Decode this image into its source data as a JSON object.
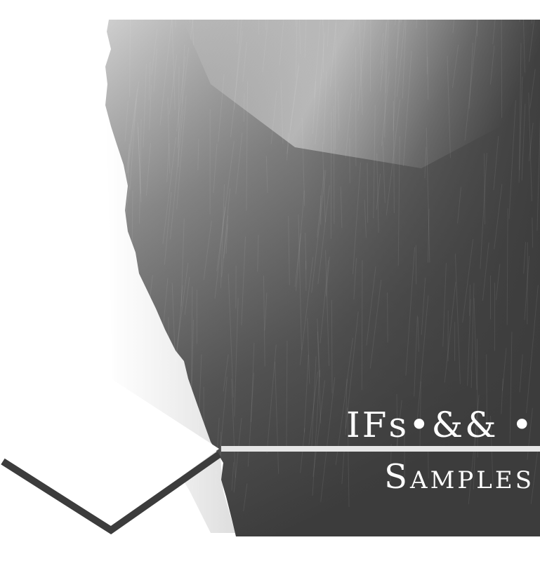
{
  "title": {
    "line1": "IFs•&& •",
    "line2": "Samples"
  },
  "colors": {
    "background": "#ffffff",
    "dark_fill": "#3c3c3c",
    "divider": "#e6e6e6",
    "chevron": "#3c3c3c"
  }
}
